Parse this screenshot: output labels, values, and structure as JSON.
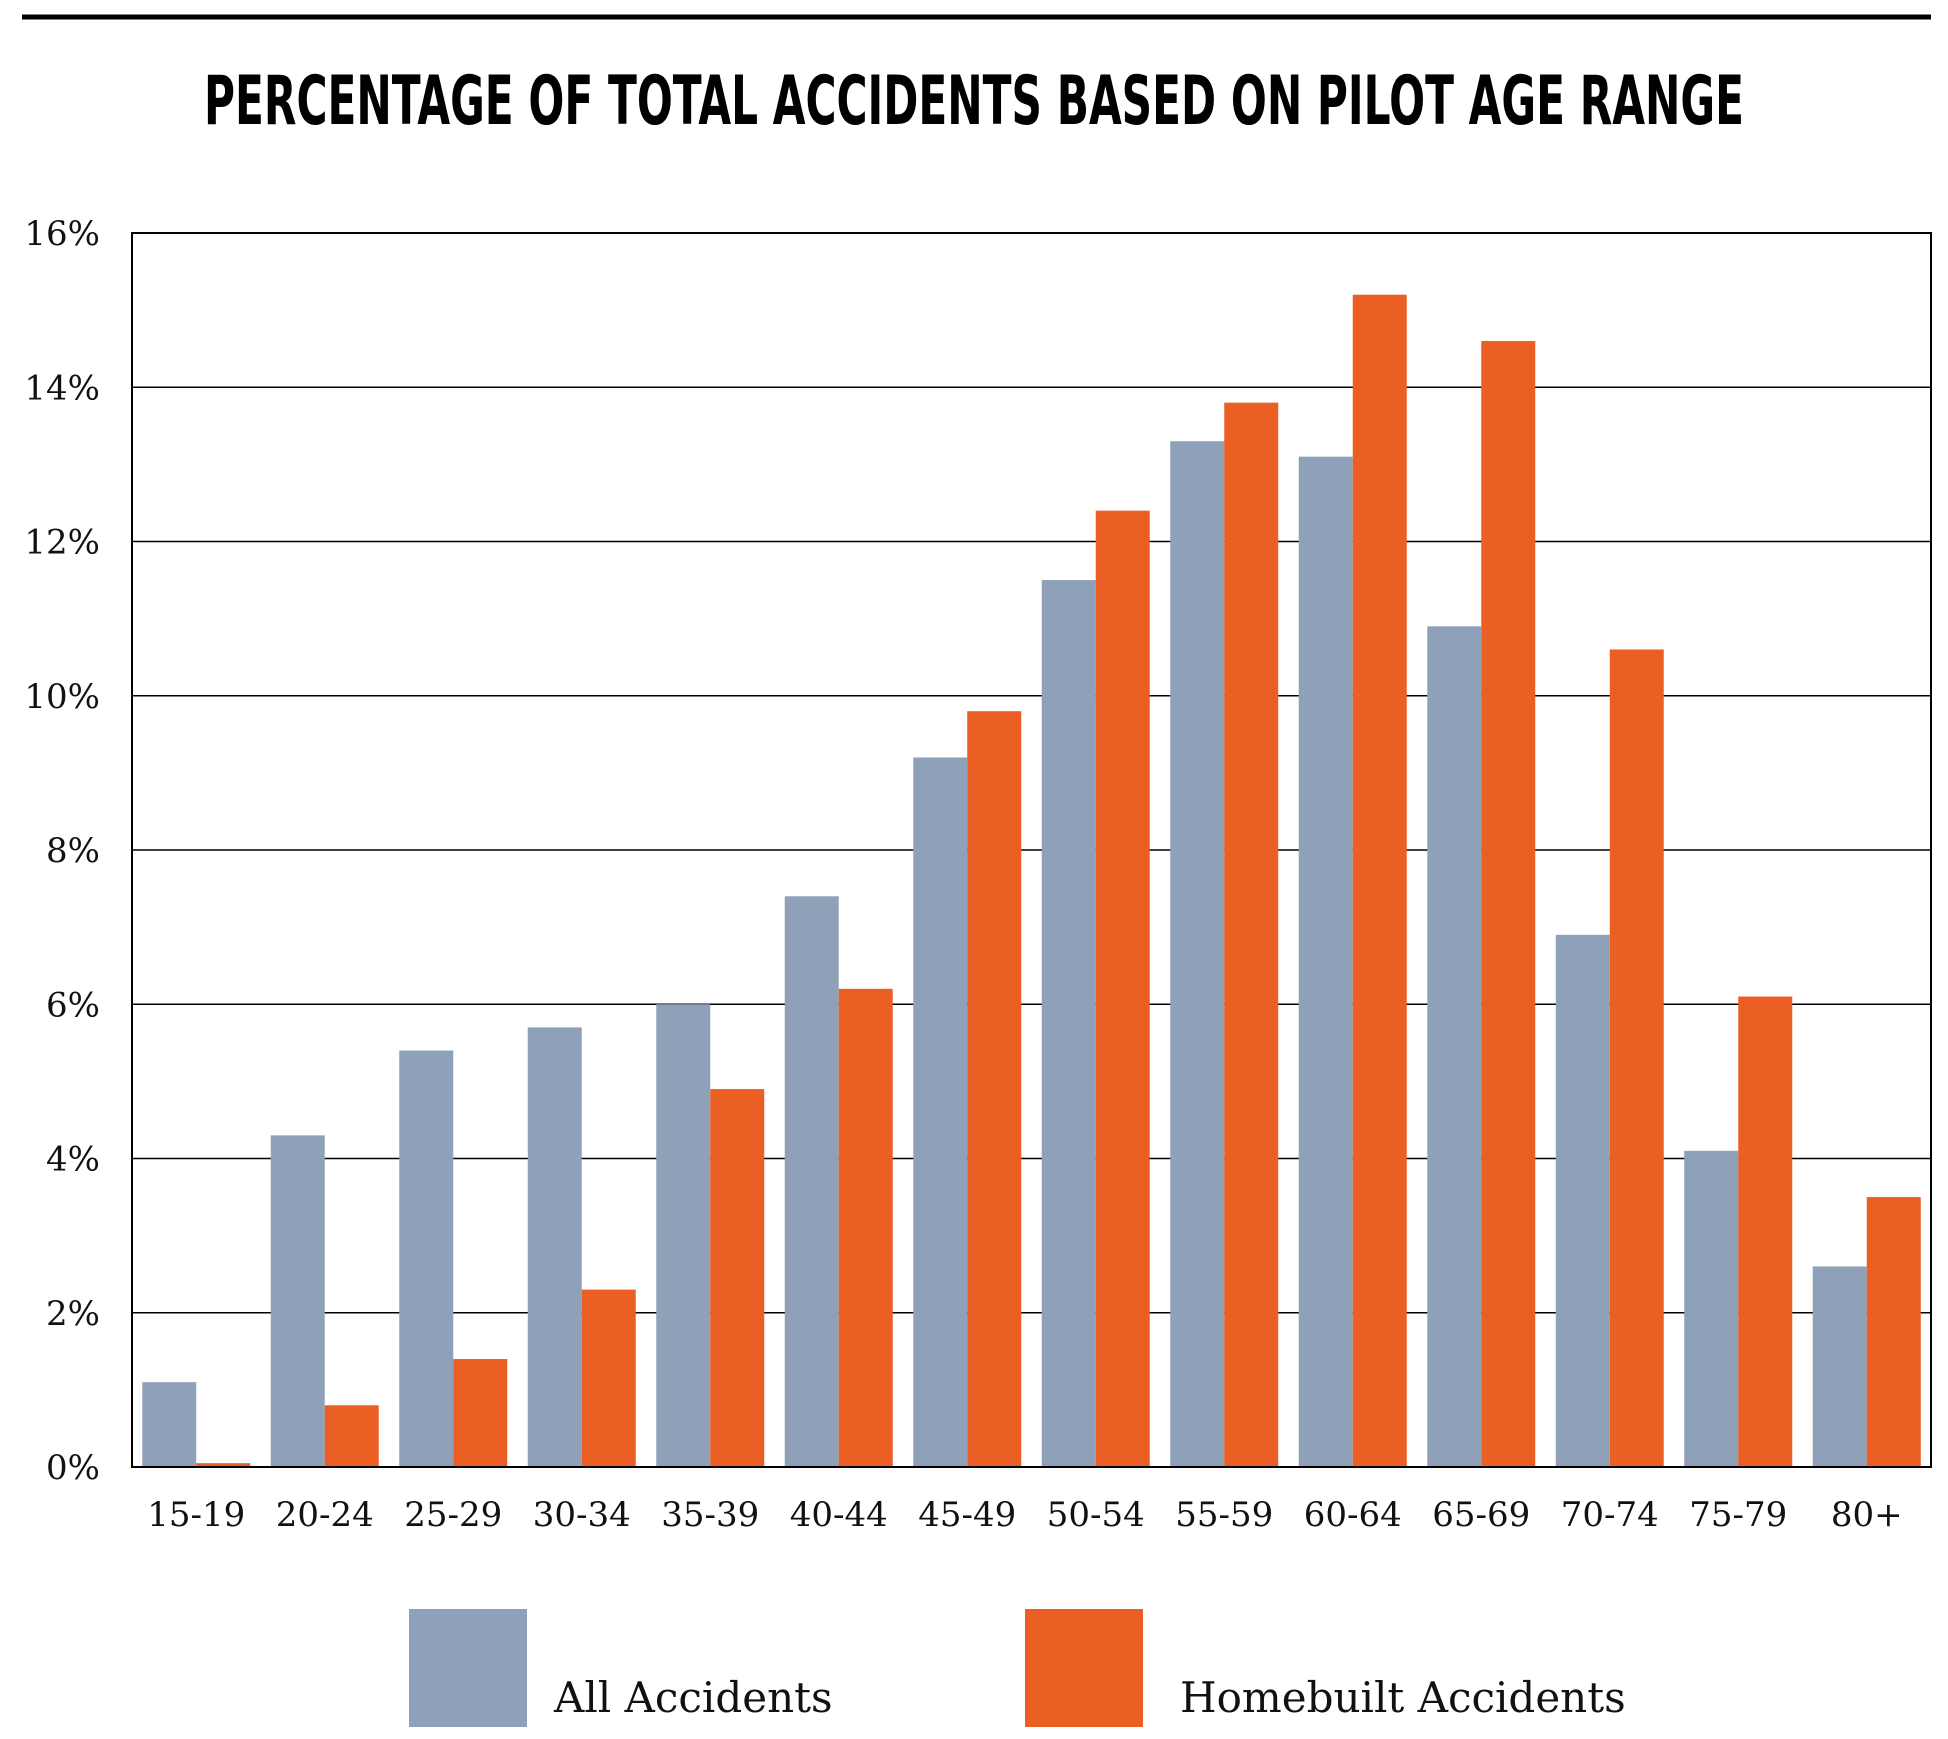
{
  "chart_data": {
    "type": "bar",
    "title": "PERCENTAGE OF TOTAL ACCIDENTS BASED ON PILOT AGE RANGE",
    "xlabel": "",
    "ylabel": "",
    "ylim": [
      0,
      16
    ],
    "yticks": [
      "0%",
      "2%",
      "4%",
      "6%",
      "8%",
      "10%",
      "12%",
      "14%",
      "16%"
    ],
    "grid": true,
    "legend_position": "bottom",
    "categories": [
      "15-19",
      "20-24",
      "25-29",
      "30-34",
      "35-39",
      "40-44",
      "45-49",
      "50-54",
      "55-59",
      "60-64",
      "65-69",
      "70-74",
      "75-79",
      "80+"
    ],
    "series": [
      {
        "name": "All Accidents",
        "color": "#8fa1b8",
        "values": [
          1.1,
          4.3,
          5.4,
          5.7,
          6.0,
          7.4,
          9.2,
          11.5,
          13.3,
          13.1,
          10.9,
          6.9,
          4.1,
          2.6
        ]
      },
      {
        "name": "Homebuilt Accidents",
        "color": "#eb5f25",
        "values": [
          0.05,
          0.8,
          1.4,
          2.3,
          4.9,
          6.2,
          9.8,
          12.4,
          13.8,
          15.2,
          14.6,
          10.6,
          6.1,
          3.5
        ]
      }
    ]
  }
}
